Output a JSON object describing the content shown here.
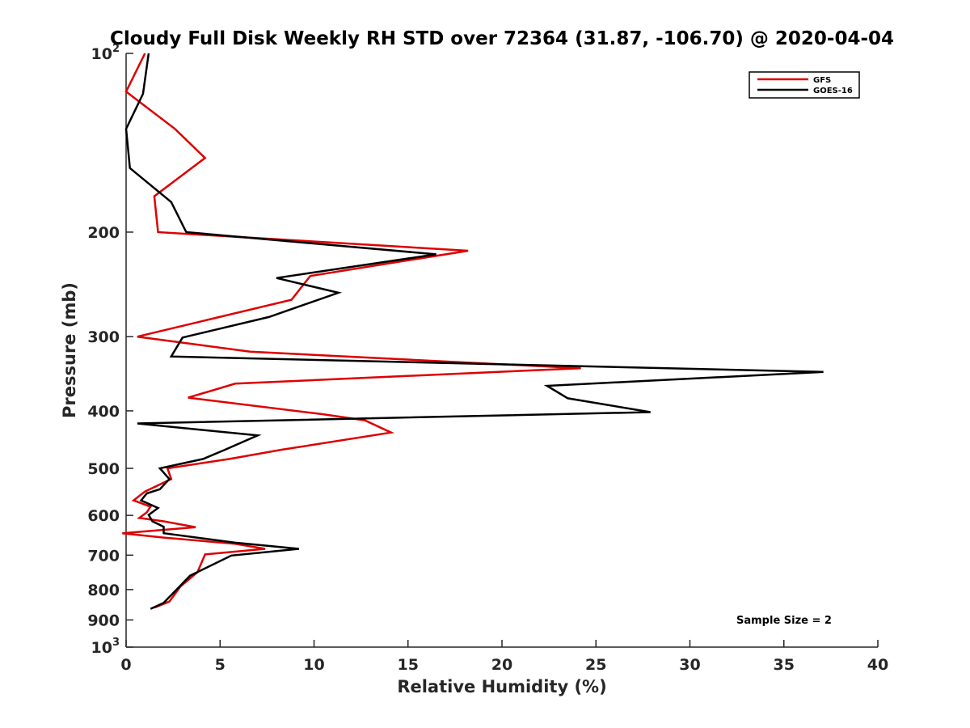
{
  "chart_data": {
    "type": "line",
    "title": "Cloudy Full Disk Weekly RH STD over 72364 (31.87, -106.70) @ 2020-04-04",
    "xlabel": "Relative Humidity (%)",
    "ylabel": "Pressure (mb)",
    "xlim": [
      0,
      40
    ],
    "ylim": [
      100,
      1000
    ],
    "yscale": "log",
    "y_reversed": true,
    "x_ticks": [
      0,
      5,
      10,
      15,
      20,
      25,
      30,
      35,
      40
    ],
    "y_ticks": [
      {
        "value": 100,
        "label": "10",
        "exp": "2"
      },
      {
        "value": 200,
        "label": "200"
      },
      {
        "value": 300,
        "label": "300"
      },
      {
        "value": 400,
        "label": "400"
      },
      {
        "value": 500,
        "label": "500"
      },
      {
        "value": 600,
        "label": "600"
      },
      {
        "value": 700,
        "label": "700"
      },
      {
        "value": 800,
        "label": "800"
      },
      {
        "value": 900,
        "label": "900"
      },
      {
        "value": 1000,
        "label": "10",
        "exp": "3"
      }
    ],
    "grid": false,
    "legend_position": "top-right",
    "annotation": "Sample Size = 2",
    "series": [
      {
        "name": "GFS",
        "color": "#dd0000",
        "points": [
          [
            1.0,
            100
          ],
          [
            0.0,
            116
          ],
          [
            2.6,
            134
          ],
          [
            4.2,
            150
          ],
          [
            1.5,
            174
          ],
          [
            1.7,
            200
          ],
          [
            18.2,
            215
          ],
          [
            9.8,
            237
          ],
          [
            8.8,
            260
          ],
          [
            0.6,
            300
          ],
          [
            6.6,
            318
          ],
          [
            24.2,
            339
          ],
          [
            5.8,
            360
          ],
          [
            3.3,
            380
          ],
          [
            10.4,
            405
          ],
          [
            12.7,
            415
          ],
          [
            14.1,
            435
          ],
          [
            8.3,
            465
          ],
          [
            5.5,
            482
          ],
          [
            2.2,
            500
          ],
          [
            2.4,
            521
          ],
          [
            1.0,
            547
          ],
          [
            0.4,
            566
          ],
          [
            1.3,
            580
          ],
          [
            1.1,
            593
          ],
          [
            0.7,
            606
          ],
          [
            2.0,
            614
          ],
          [
            3.7,
            628
          ],
          [
            -0.2,
            643
          ],
          [
            2.0,
            654
          ],
          [
            5.8,
            670
          ],
          [
            7.4,
            683
          ],
          [
            4.2,
            698
          ],
          [
            3.8,
            748
          ],
          [
            2.9,
            790
          ],
          [
            2.3,
            838
          ],
          [
            1.5,
            858
          ]
        ]
      },
      {
        "name": "GOES-16",
        "color": "#000000",
        "points": [
          [
            1.2,
            100
          ],
          [
            0.9,
            117
          ],
          [
            0.0,
            134
          ],
          [
            0.2,
            156
          ],
          [
            2.4,
            178
          ],
          [
            3.2,
            200
          ],
          [
            16.5,
            218
          ],
          [
            8.0,
            239
          ],
          [
            11.3,
            253
          ],
          [
            7.6,
            278
          ],
          [
            3.0,
            301
          ],
          [
            2.4,
            324
          ],
          [
            37.1,
            344
          ],
          [
            22.4,
            363
          ],
          [
            23.5,
            381
          ],
          [
            27.9,
            402
          ],
          [
            0.6,
            420
          ],
          [
            7.0,
            440
          ],
          [
            5.2,
            466
          ],
          [
            4.1,
            482
          ],
          [
            1.8,
            500
          ],
          [
            2.3,
            521
          ],
          [
            1.8,
            542
          ],
          [
            1.1,
            551
          ],
          [
            0.8,
            566
          ],
          [
            1.7,
            583
          ],
          [
            1.2,
            599
          ],
          [
            1.4,
            614
          ],
          [
            2.0,
            627
          ],
          [
            2.0,
            643
          ],
          [
            5.8,
            667
          ],
          [
            9.2,
            683
          ],
          [
            5.6,
            701
          ],
          [
            3.4,
            758
          ],
          [
            2.8,
            793
          ],
          [
            2.0,
            842
          ],
          [
            1.3,
            862
          ]
        ]
      }
    ]
  }
}
